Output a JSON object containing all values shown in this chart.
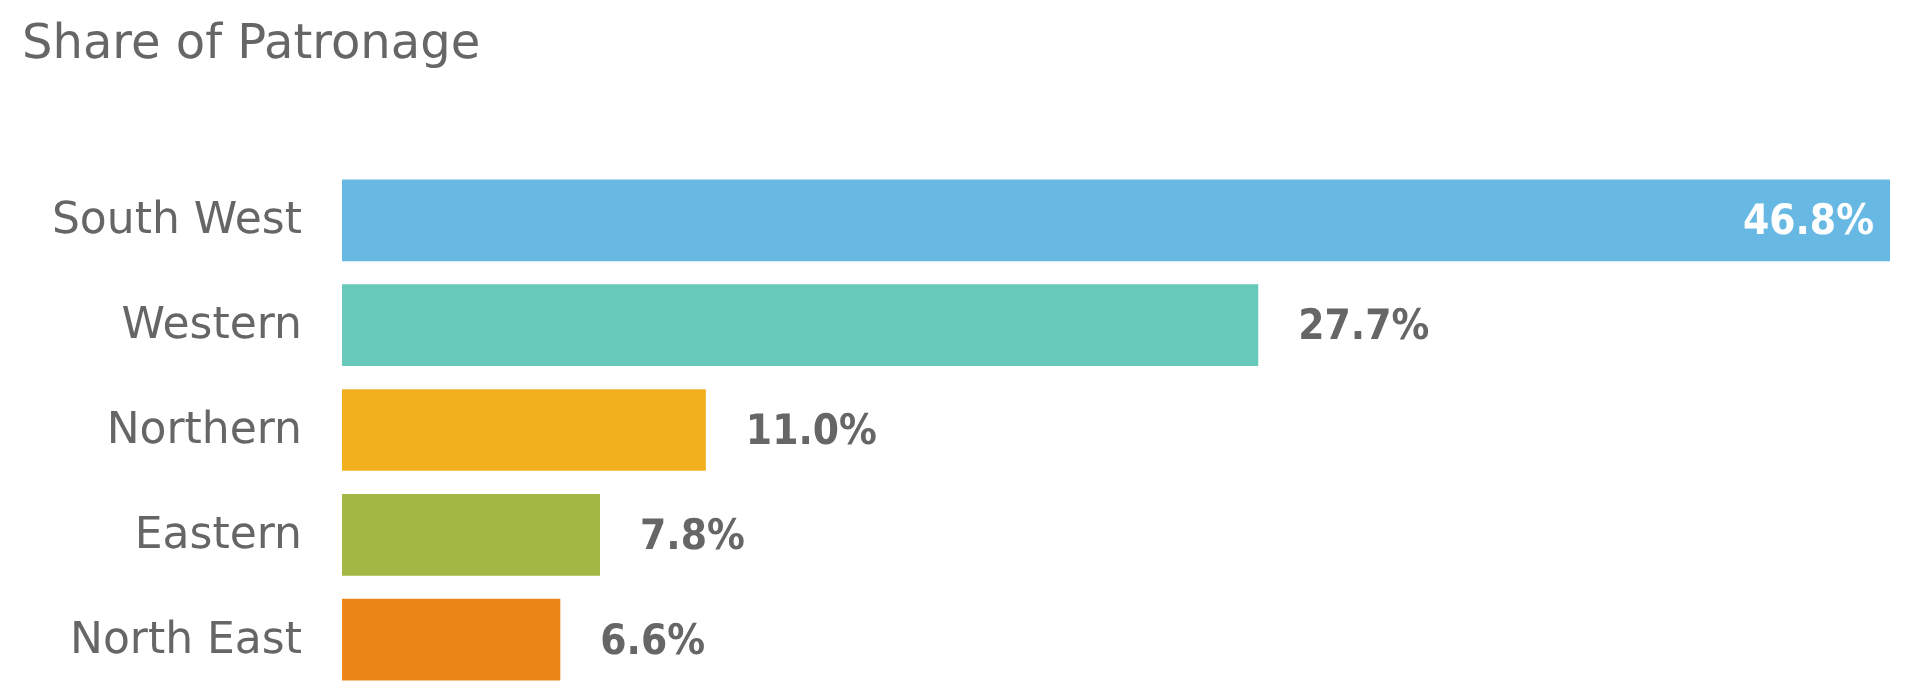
{
  "chart_data": {
    "type": "bar",
    "orientation": "horizontal",
    "title": "Share of Patronage",
    "categories": [
      "South West",
      "Western",
      "Northern",
      "Eastern",
      "North East"
    ],
    "values": [
      46.8,
      27.7,
      11.0,
      7.8,
      6.6
    ],
    "colors": [
      "#68b8e4",
      "#66c9b9",
      "#f2b01e",
      "#a3b844",
      "#ec8619"
    ],
    "value_labels": [
      "46.8%",
      "27.7%",
      "11.0%",
      "7.8%",
      "6.6%"
    ]
  }
}
